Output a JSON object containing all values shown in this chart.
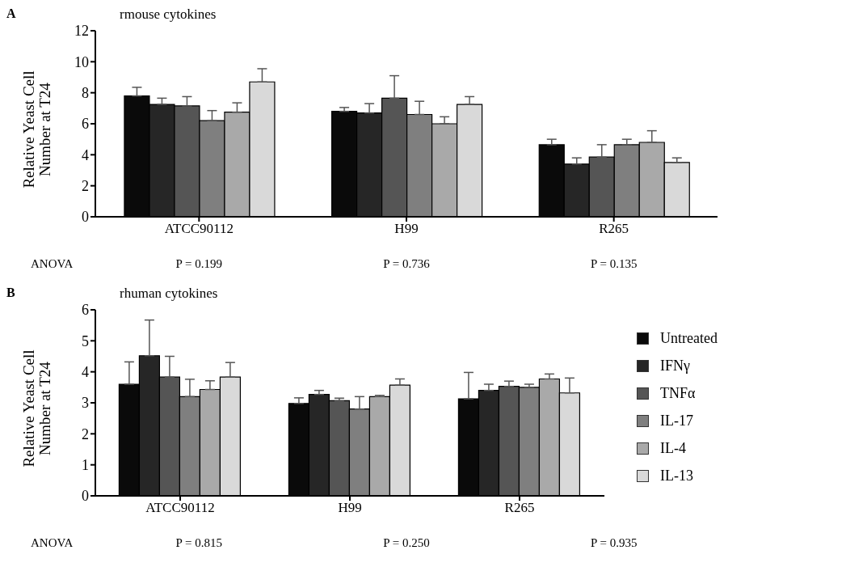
{
  "chart_data": [
    {
      "type": "bar",
      "title": "rmouse cytokines",
      "ylabel": "Relative Yeast Cell Number at T24",
      "categories": [
        "ATCC90112",
        "H99",
        "R265"
      ],
      "ylim": [
        0,
        12
      ],
      "yticks": [
        0,
        2,
        4,
        6,
        8,
        10,
        12
      ],
      "grid": false,
      "legend": false,
      "series": [
        {
          "color": "#0a0a0a",
          "values": [
            7.8,
            6.8,
            4.65
          ],
          "errors": [
            [
              7.8,
              8.35
            ],
            [
              6.8,
              7.05
            ],
            [
              4.65,
              5.0
            ]
          ]
        },
        {
          "color": "#262626",
          "values": [
            7.25,
            6.7,
            3.4
          ],
          "errors": [
            [
              7.25,
              7.65
            ],
            [
              6.7,
              7.3
            ],
            [
              3.4,
              3.8
            ]
          ]
        },
        {
          "color": "#555555",
          "values": [
            7.15,
            7.65,
            3.85
          ],
          "errors": [
            [
              7.15,
              7.75
            ],
            [
              7.65,
              9.1
            ],
            [
              3.85,
              4.65
            ]
          ]
        },
        {
          "color": "#7f7f7f",
          "values": [
            6.2,
            6.6,
            4.65
          ],
          "errors": [
            [
              6.2,
              6.85
            ],
            [
              6.6,
              7.45
            ],
            [
              4.65,
              5.0
            ]
          ]
        },
        {
          "color": "#a9a9a9",
          "values": [
            6.75,
            6.0,
            4.8
          ],
          "errors": [
            [
              6.75,
              7.35
            ],
            [
              6.0,
              6.45
            ],
            [
              4.8,
              5.55
            ]
          ]
        },
        {
          "color": "#d9d9d9",
          "values": [
            8.7,
            7.25,
            3.5
          ],
          "errors": [
            [
              8.7,
              9.55
            ],
            [
              7.25,
              7.75
            ],
            [
              3.5,
              3.8
            ]
          ]
        }
      ],
      "annotations": [
        "A",
        "ANOVA",
        "P = 0.199",
        "P = 0.736",
        "P = 0.135"
      ]
    },
    {
      "type": "bar",
      "title": "rhuman cytokines",
      "ylabel": "Relative Yeast Cell Number at T24",
      "categories": [
        "ATCC90112",
        "H99",
        "R265"
      ],
      "ylim": [
        0,
        6
      ],
      "yticks": [
        0,
        1,
        2,
        3,
        4,
        5,
        6
      ],
      "grid": false,
      "legend": "right",
      "series": [
        {
          "name": "Untreated",
          "color": "#0a0a0a",
          "values": [
            3.6,
            2.98,
            3.13
          ],
          "errors": [
            [
              3.6,
              4.32
            ],
            [
              2.98,
              3.16
            ],
            [
              3.13,
              3.98
            ]
          ]
        },
        {
          "name": "IFNγ",
          "color": "#262626",
          "values": [
            4.52,
            3.27,
            3.4
          ],
          "errors": [
            [
              4.52,
              5.67
            ],
            [
              3.27,
              3.4
            ],
            [
              3.4,
              3.6
            ]
          ]
        },
        {
          "name": "TNFα",
          "color": "#555555",
          "values": [
            3.83,
            3.07,
            3.53
          ],
          "errors": [
            [
              3.83,
              4.5
            ],
            [
              3.07,
              3.15
            ],
            [
              3.53,
              3.7
            ]
          ]
        },
        {
          "name": "IL-17",
          "color": "#7f7f7f",
          "values": [
            3.2,
            2.8,
            3.5
          ],
          "errors": [
            [
              3.2,
              3.76
            ],
            [
              2.8,
              3.2
            ],
            [
              3.5,
              3.6
            ]
          ]
        },
        {
          "name": "IL-4",
          "color": "#a9a9a9",
          "values": [
            3.43,
            3.2,
            3.77
          ],
          "errors": [
            [
              3.43,
              3.71
            ],
            [
              3.2,
              3.24
            ],
            [
              3.77,
              3.93
            ]
          ]
        },
        {
          "name": "IL-13",
          "color": "#d9d9d9",
          "values": [
            3.83,
            3.57,
            3.32
          ],
          "errors": [
            [
              3.83,
              4.3
            ],
            [
              3.57,
              3.77
            ],
            [
              3.32,
              3.8
            ]
          ]
        }
      ],
      "annotations": [
        "B",
        "ANOVA",
        "P = 0.815",
        "P = 0.250",
        "P = 0.935"
      ]
    }
  ]
}
